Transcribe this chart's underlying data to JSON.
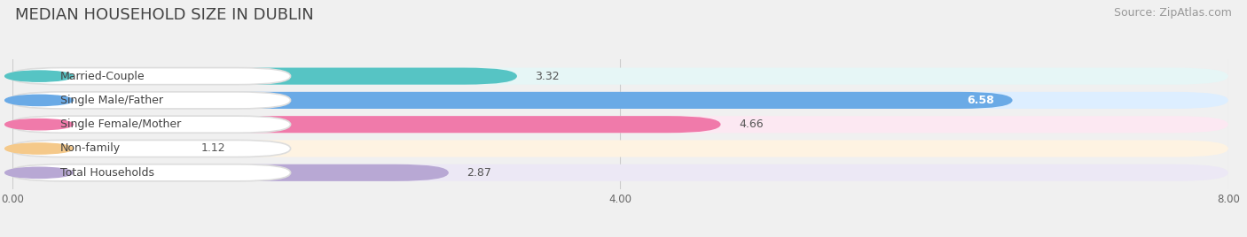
{
  "title": "MEDIAN HOUSEHOLD SIZE IN DUBLIN",
  "source": "Source: ZipAtlas.com",
  "categories": [
    "Married-Couple",
    "Single Male/Father",
    "Single Female/Mother",
    "Non-family",
    "Total Households"
  ],
  "values": [
    3.32,
    6.58,
    4.66,
    1.12,
    2.87
  ],
  "bar_colors": [
    "#56c4c4",
    "#6aaae6",
    "#f07aaa",
    "#f5c98a",
    "#b8a8d4"
  ],
  "bar_bg_colors": [
    "#e6f6f6",
    "#ddeeff",
    "#fce8f2",
    "#fef3e2",
    "#ece8f5"
  ],
  "xlim": [
    0,
    8.0
  ],
  "xticks": [
    0.0,
    4.0,
    8.0
  ],
  "xtick_labels": [
    "0.00",
    "4.00",
    "8.00"
  ],
  "background_color": "#f0f0f0",
  "title_fontsize": 13,
  "source_fontsize": 9,
  "label_fontsize": 9,
  "value_fontsize": 9
}
